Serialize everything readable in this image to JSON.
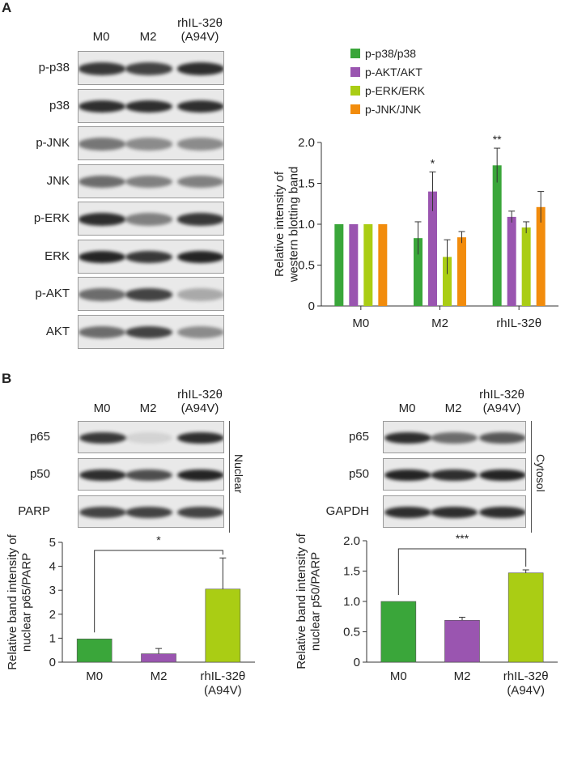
{
  "panels": {
    "a": "A",
    "b": "B"
  },
  "blots_a": {
    "lanes": [
      "M0",
      "M2",
      "rhIL-32θ\n(A94V)"
    ],
    "rows": [
      {
        "label": "p-p38",
        "intensities": [
          0.85,
          0.8,
          0.9
        ]
      },
      {
        "label": "p38",
        "intensities": [
          0.9,
          0.9,
          0.9
        ]
      },
      {
        "label": "p-JNK",
        "intensities": [
          0.55,
          0.45,
          0.45
        ]
      },
      {
        "label": "JNK",
        "intensities": [
          0.6,
          0.5,
          0.5
        ]
      },
      {
        "label": "p-ERK",
        "intensities": [
          0.9,
          0.5,
          0.85
        ]
      },
      {
        "label": "ERK",
        "intensities": [
          0.95,
          0.85,
          0.95
        ]
      },
      {
        "label": "p-AKT",
        "intensities": [
          0.6,
          0.8,
          0.3
        ]
      },
      {
        "label": "AKT",
        "intensities": [
          0.6,
          0.8,
          0.45
        ]
      }
    ]
  },
  "blots_b_nuclear": {
    "lanes": [
      "M0",
      "M2",
      "rhIL-32θ\n(A94V)"
    ],
    "rows": [
      {
        "label": "p65",
        "intensities": [
          0.85,
          0.1,
          0.9
        ]
      },
      {
        "label": "p50",
        "intensities": [
          0.9,
          0.75,
          0.95
        ]
      },
      {
        "label": "PARP",
        "intensities": [
          0.8,
          0.8,
          0.8
        ]
      }
    ],
    "side_label": "Nuclear"
  },
  "blots_b_cytosol": {
    "lanes": [
      "M0",
      "M2",
      "rhIL-32θ\n(A94V)"
    ],
    "rows": [
      {
        "label": "p65",
        "intensities": [
          0.9,
          0.6,
          0.7
        ]
      },
      {
        "label": "p50",
        "intensities": [
          0.95,
          0.9,
          0.95
        ]
      },
      {
        "label": "GAPDH",
        "intensities": [
          0.9,
          0.9,
          0.9
        ]
      }
    ],
    "side_label": "Cytosol"
  },
  "chart_data": [
    {
      "type": "bar",
      "title": "",
      "xlabel": "",
      "ylabel": "Relative intensity of\nwestern blotting band",
      "categories": [
        "M0",
        "M2",
        "rhIL-32θ\n(A94V)"
      ],
      "ylim": [
        0,
        2.0
      ],
      "yticks": [
        0,
        0.5,
        1.0,
        1.5,
        2.0
      ],
      "ytick_labels": [
        "0",
        "0.5",
        "1.0",
        "1.5",
        "2.0"
      ],
      "legend_position": "top-right",
      "series": [
        {
          "name": "p-p38/p38",
          "color": "#3aa63a",
          "values": [
            1.0,
            0.83,
            1.72
          ],
          "errors": [
            0,
            0.2,
            0.21
          ]
        },
        {
          "name": "p-AKT/AKT",
          "color": "#9a55b0",
          "values": [
            1.0,
            1.4,
            1.09
          ],
          "errors": [
            0,
            0.24,
            0.07
          ]
        },
        {
          "name": "p-ERK/ERK",
          "color": "#aacd14",
          "values": [
            1.0,
            0.6,
            0.96
          ],
          "errors": [
            0,
            0.21,
            0.07
          ]
        },
        {
          "name": "p-JNK/JNK",
          "color": "#f28c0c",
          "values": [
            1.0,
            0.84,
            1.21
          ],
          "errors": [
            0,
            0.07,
            0.19
          ]
        }
      ],
      "annotations": [
        {
          "category": 1,
          "series": 1,
          "text": "*"
        },
        {
          "category": 2,
          "series": 0,
          "text": "**"
        }
      ]
    },
    {
      "type": "bar",
      "title": "",
      "xlabel": "",
      "ylabel": "Relative band intensity of\nnuclear p65/PARP",
      "categories": [
        "M0",
        "M2",
        "rhIL-32θ\n(A94V)"
      ],
      "ylim": [
        0,
        5
      ],
      "yticks": [
        0,
        1,
        2,
        3,
        4,
        5
      ],
      "ytick_labels": [
        "0",
        "1",
        "2",
        "3",
        "4",
        "5"
      ],
      "colors": [
        "#3aa63a",
        "#9a55b0",
        "#aacd14"
      ],
      "values": [
        0.97,
        0.35,
        3.05
      ],
      "errors": [
        0,
        0.22,
        1.3
      ],
      "significance": {
        "from": 0,
        "to": 2,
        "text": "*"
      }
    },
    {
      "type": "bar",
      "title": "",
      "xlabel": "",
      "ylabel": "Relative band intensity of\nnuclear p50/PARP",
      "categories": [
        "M0",
        "M2",
        "rhIL-32θ\n(A94V)"
      ],
      "ylim": [
        0,
        2.0
      ],
      "yticks": [
        0,
        0.5,
        1.0,
        1.5,
        2.0
      ],
      "ytick_labels": [
        "0",
        "0.5",
        "1.0",
        "1.5",
        "2.0"
      ],
      "colors": [
        "#3aa63a",
        "#9a55b0",
        "#aacd14"
      ],
      "values": [
        1.0,
        0.69,
        1.47
      ],
      "errors": [
        0,
        0.05,
        0.05
      ],
      "significance": {
        "from": 0,
        "to": 2,
        "text": "***"
      }
    }
  ]
}
